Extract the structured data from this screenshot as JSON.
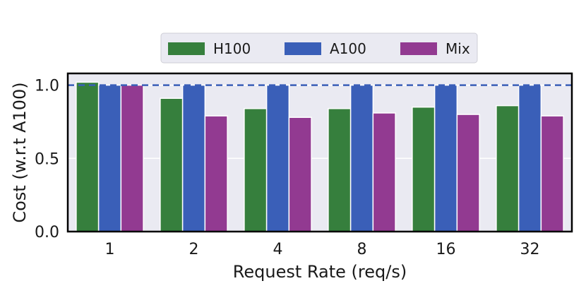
{
  "chart_data": {
    "type": "bar",
    "xlabel": "Request Rate (req/s)",
    "ylabel": "Cost (w.r.t A100)",
    "categories": [
      "1",
      "2",
      "4",
      "8",
      "16",
      "32"
    ],
    "series": [
      {
        "name": "H100",
        "color": "#367f3d",
        "values": [
          1.02,
          0.91,
          0.84,
          0.84,
          0.85,
          0.86
        ]
      },
      {
        "name": "A100",
        "color": "#3a5fb8",
        "values": [
          1.0,
          1.0,
          1.0,
          1.0,
          1.0,
          1.0
        ]
      },
      {
        "name": "Mix",
        "color": "#923a91",
        "values": [
          1.0,
          0.79,
          0.78,
          0.81,
          0.8,
          0.79
        ]
      }
    ],
    "yticks": [
      "0.0",
      "0.5",
      "1.0"
    ],
    "ylim": [
      0,
      1.08
    ],
    "reference_line": {
      "y": 1.0,
      "style": "dashed",
      "color": "#3a5fb8"
    },
    "grid": "horizontal",
    "legend_placement": "top-center, outside plot"
  }
}
